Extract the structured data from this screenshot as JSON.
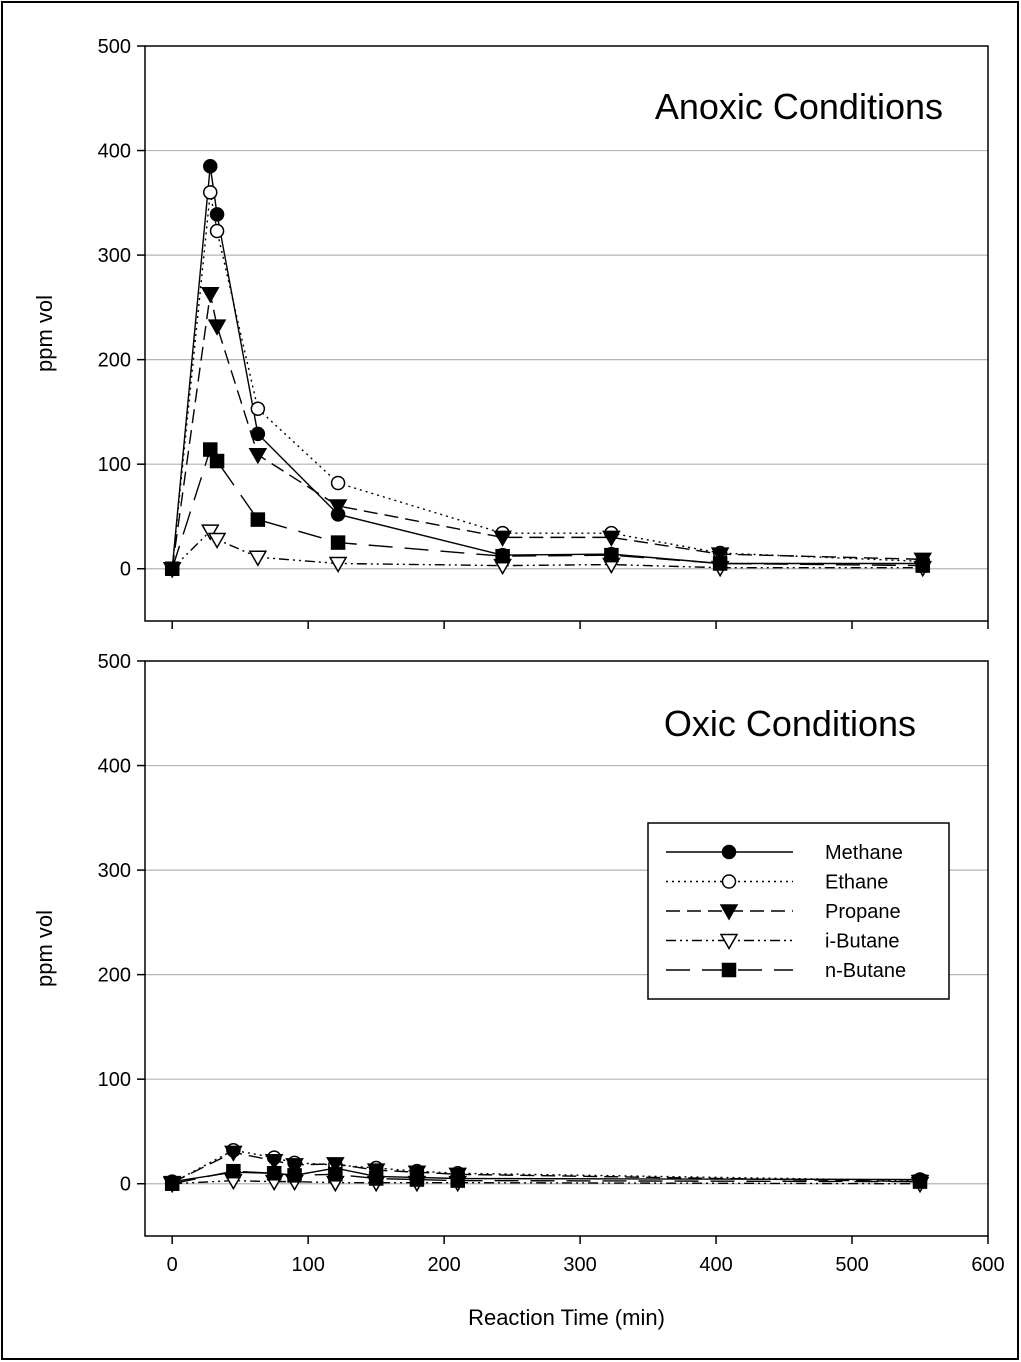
{
  "chart_data": [
    {
      "type": "line",
      "title": "Anoxic Conditions",
      "xlabel": "",
      "ylabel": "ppm vol",
      "xlim": [
        -20,
        600
      ],
      "ylim": [
        -50,
        500
      ],
      "yticks": [
        0,
        100,
        200,
        300,
        400,
        500
      ],
      "grid": "horizontal",
      "series": [
        {
          "name": "Methane",
          "x": [
            0,
            28,
            33,
            63,
            122,
            243,
            323,
            403,
            552
          ],
          "y": [
            0,
            385,
            339,
            129,
            52,
            13,
            14,
            5,
            5
          ]
        },
        {
          "name": "Ethane",
          "x": [
            0,
            28,
            33,
            63,
            122,
            243,
            323,
            403,
            552
          ],
          "y": [
            0,
            360,
            323,
            153,
            82,
            34,
            34,
            15,
            7
          ]
        },
        {
          "name": "Propane",
          "x": [
            0,
            28,
            33,
            63,
            122,
            243,
            323,
            403,
            552
          ],
          "y": [
            0,
            263,
            232,
            109,
            60,
            30,
            30,
            14,
            9
          ]
        },
        {
          "name": "i-Butane",
          "x": [
            0,
            28,
            33,
            63,
            122,
            243,
            323,
            403,
            552
          ],
          "y": [
            0,
            36,
            28,
            11,
            5,
            3,
            4,
            1,
            1
          ]
        },
        {
          "name": "n-Butane",
          "x": [
            0,
            28,
            33,
            63,
            122,
            243,
            323,
            403,
            552
          ],
          "y": [
            0,
            114,
            103,
            47,
            25,
            12,
            13,
            5,
            3
          ]
        }
      ]
    },
    {
      "type": "line",
      "title": "Oxic Conditions",
      "xlabel": "Reaction Time (min)",
      "ylabel": "ppm vol",
      "xlim": [
        -20,
        600
      ],
      "ylim": [
        -50,
        500
      ],
      "xticks": [
        0,
        100,
        200,
        300,
        400,
        500,
        600
      ],
      "yticks": [
        0,
        100,
        200,
        300,
        400,
        500
      ],
      "grid": "horizontal",
      "legend": "right",
      "series": [
        {
          "name": "Methane",
          "x": [
            0,
            45,
            75,
            90,
            120,
            150,
            180,
            210,
            550
          ],
          "y": [
            2,
            11,
            10,
            8,
            15,
            7,
            6,
            5,
            4
          ]
        },
        {
          "name": "Ethane",
          "x": [
            0,
            45,
            75,
            90,
            120,
            150,
            180,
            210,
            550
          ],
          "y": [
            1,
            32,
            25,
            20,
            18,
            15,
            12,
            10,
            3
          ]
        },
        {
          "name": "Propane",
          "x": [
            0,
            45,
            75,
            90,
            120,
            150,
            180,
            210,
            550
          ],
          "y": [
            1,
            30,
            22,
            18,
            19,
            13,
            11,
            9,
            2
          ]
        },
        {
          "name": "i-Butane",
          "x": [
            0,
            45,
            75,
            90,
            120,
            150,
            180,
            210,
            550
          ],
          "y": [
            0,
            3,
            2,
            2,
            1,
            1,
            1,
            1,
            0
          ]
        },
        {
          "name": "n-Butane",
          "x": [
            0,
            45,
            75,
            90,
            120,
            150,
            180,
            210,
            550
          ],
          "y": [
            0,
            12,
            10,
            8,
            9,
            5,
            4,
            3,
            2
          ]
        }
      ]
    }
  ],
  "legend": {
    "items": [
      {
        "label": "Methane",
        "marker": "filled-circle",
        "dash": "solid"
      },
      {
        "label": "Ethane",
        "marker": "open-circle",
        "dash": "dotted"
      },
      {
        "label": "Propane",
        "marker": "filled-triangle-down",
        "dash": "dashed"
      },
      {
        "label": "i-Butane",
        "marker": "open-triangle-down",
        "dash": "dash-dot-dot"
      },
      {
        "label": "n-Butane",
        "marker": "filled-square",
        "dash": "long-dash"
      }
    ]
  }
}
